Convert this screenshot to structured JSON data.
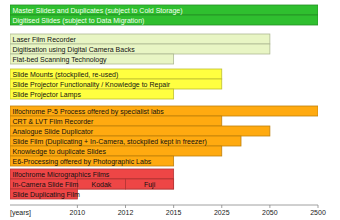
{
  "chart_data": {
    "type": "gantt",
    "orientation": "horizontal",
    "xlabel": "[years]",
    "xlim": [
      2000,
      2500
    ],
    "xticks": [
      2010,
      2012,
      2015,
      2025,
      2050,
      2500
    ],
    "groups": [
      {
        "color": "#2fbf2f",
        "rows": [
          {
            "label": "Master Slides and Duplicates (subject to Cold Storage)",
            "start": 2000,
            "end": 2500
          },
          {
            "label": "Digitised Slides (subject to Data Migration)",
            "start": 2000,
            "end": 2500
          }
        ]
      },
      {
        "color": "#e8f5c4",
        "rows": [
          {
            "label": "Laser Film Recorder",
            "start": 2000,
            "end": 2050
          },
          {
            "label": "Digitisation using Digital Camera Backs",
            "start": 2000,
            "end": 2050
          },
          {
            "label": "Flat-bed Scanning Technology",
            "start": 2000,
            "end": 2015
          }
        ]
      },
      {
        "color": "#ffff40",
        "rows": [
          {
            "label": "Slide Mounts (stockpiled, re-used)",
            "start": 2000,
            "end": 2025
          },
          {
            "label": "Slide Projector Functionality / Knowledge to Repair",
            "start": 2000,
            "end": 2025
          },
          {
            "label": "Slide Projector Lamps",
            "start": 2000,
            "end": 2015
          }
        ]
      },
      {
        "color": "#ffaa10",
        "rows": [
          {
            "label": "Ilfochrome P-5 Process offered by specialist labs",
            "start": 2000,
            "end": 2500
          },
          {
            "label": "CRT & LVT Film Recorder",
            "start": 2000,
            "end": 2025
          },
          {
            "label": "Analogue Slide Duplicator",
            "start": 2000,
            "end": 2050
          },
          {
            "label": "Slide Film (Duplicating + In-Camera, stockpiled kept in freezer)",
            "start": 2000,
            "end": 2035
          },
          {
            "label": "Knowledge to duplicate Slides",
            "start": 2000,
            "end": 2025
          },
          {
            "label": "E6-Processing offered by Photographic Labs",
            "start": 2000,
            "end": 2015
          }
        ]
      },
      {
        "color": "#ee4646",
        "rows": [
          {
            "label": "Ilfochrome Micrographics Films",
            "start": 2000,
            "end": 2015
          },
          {
            "label": "In-Camera Slide Film",
            "start": 2000,
            "end": 2015,
            "segments": [
              {
                "label": "Kodak",
                "start": 2010,
                "end": 2012
              },
              {
                "label": "Fuji",
                "start": 2012,
                "end": 2015
              }
            ]
          },
          {
            "label": "Slide Duplicating Film",
            "start": 2000,
            "end": 2010
          }
        ]
      }
    ]
  }
}
